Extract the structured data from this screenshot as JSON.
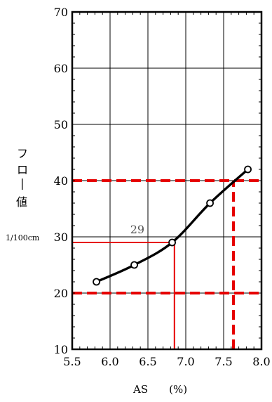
{
  "chart_data": {
    "type": "line",
    "xlabel": "AS　　(%)",
    "ylabel_chars": [
      "フ",
      "ロ",
      "|",
      "値"
    ],
    "yunit": "1/100cm",
    "xlim": [
      5.5,
      8.0
    ],
    "ylim": [
      10,
      70
    ],
    "xticks": [
      5.5,
      6.0,
      6.5,
      7.0,
      7.5,
      8.0
    ],
    "xtick_labels": [
      "5.5",
      "6.0",
      "6.5",
      "7.0",
      "7.5",
      "8.0"
    ],
    "yticks": [
      10,
      20,
      30,
      40,
      50,
      60,
      70
    ],
    "ytick_labels": [
      "10",
      "20",
      "30",
      "40",
      "50",
      "60",
      "70"
    ],
    "grid": true,
    "series": [
      {
        "points": [
          [
            5.82,
            22
          ],
          [
            6.32,
            25
          ],
          [
            6.82,
            29
          ],
          [
            7.32,
            36
          ],
          [
            7.82,
            42
          ]
        ],
        "color": "#000000",
        "markers": "open-circle"
      }
    ],
    "reference_lines": {
      "horizontal_dashed": [
        40,
        20
      ],
      "vertical_dashed": 7.63,
      "dashed_color": "#e60000",
      "solid_color": "#e60000",
      "solid_point": [
        6.85,
        29
      ]
    },
    "annotations": [
      {
        "text": "29",
        "x": 6.36,
        "y": 30.6,
        "color": "#555555"
      }
    ]
  }
}
